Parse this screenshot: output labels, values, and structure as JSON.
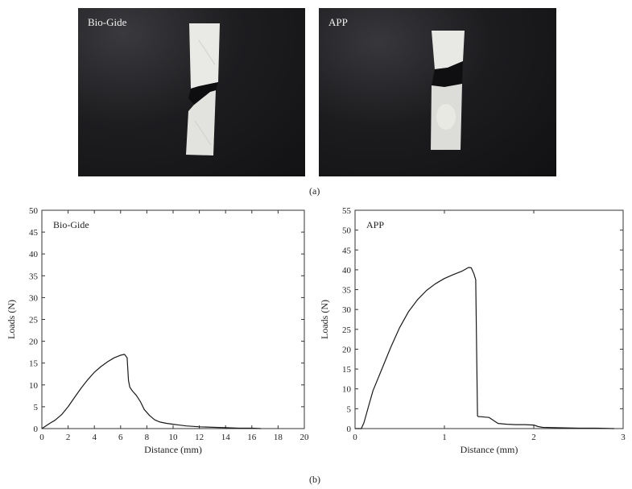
{
  "panels": {
    "a_label": "(a)",
    "b_label": "(b)"
  },
  "photos": [
    {
      "label": "Bio-Gide"
    },
    {
      "label": "APP"
    }
  ],
  "chart_data": [
    {
      "type": "line",
      "series_label": "Bio-Gide",
      "xlabel": "Distance (mm)",
      "ylabel": "Loads (N)",
      "xlim": [
        0,
        20
      ],
      "ylim": [
        0,
        50
      ],
      "xticks": [
        0,
        2,
        4,
        6,
        8,
        10,
        12,
        14,
        16,
        18,
        20
      ],
      "yticks": [
        0,
        5,
        10,
        15,
        20,
        25,
        30,
        35,
        40,
        45,
        50
      ],
      "grid": false,
      "x": [
        0,
        0.3,
        0.6,
        1.0,
        1.5,
        2.0,
        2.5,
        3.0,
        3.5,
        4.0,
        4.5,
        5.0,
        5.5,
        6.0,
        6.3,
        6.5,
        6.6,
        6.7,
        6.9,
        7.2,
        7.5,
        7.8,
        8.2,
        8.6,
        9.0,
        9.5,
        10.0,
        10.5,
        11.0,
        12.0,
        13.0,
        14.0,
        15.0,
        16.0,
        16.7
      ],
      "y": [
        0,
        0.6,
        1.2,
        1.9,
        3.2,
        5.0,
        7.2,
        9.3,
        11.2,
        12.9,
        14.2,
        15.3,
        16.2,
        16.8,
        17.0,
        16.2,
        11.0,
        9.5,
        8.6,
        7.6,
        6.2,
        4.4,
        3.0,
        2.0,
        1.5,
        1.2,
        1.0,
        0.8,
        0.6,
        0.4,
        0.3,
        0.2,
        0.1,
        0.1,
        0.0
      ]
    },
    {
      "type": "line",
      "series_label": "APP",
      "xlabel": "Distance (mm)",
      "ylabel": "Loads (N)",
      "xlim": [
        0,
        3
      ],
      "ylim": [
        0,
        55
      ],
      "xticks": [
        0,
        1,
        2,
        3
      ],
      "yticks": [
        0,
        5,
        10,
        15,
        20,
        25,
        30,
        35,
        40,
        45,
        50,
        55
      ],
      "grid": false,
      "x": [
        0,
        0.07,
        0.1,
        0.15,
        0.2,
        0.3,
        0.4,
        0.5,
        0.6,
        0.7,
        0.8,
        0.9,
        1.0,
        1.1,
        1.2,
        1.27,
        1.3,
        1.33,
        1.35,
        1.36,
        1.37,
        1.38,
        1.4,
        1.5,
        1.6,
        1.7,
        1.8,
        1.9,
        2.0,
        2.05,
        2.1,
        2.3,
        2.5,
        2.7,
        2.9
      ],
      "y": [
        0,
        0,
        1.5,
        5.5,
        9.5,
        15.0,
        20.5,
        25.5,
        29.5,
        32.5,
        34.8,
        36.5,
        37.8,
        38.8,
        39.7,
        40.6,
        40.5,
        39.0,
        37.5,
        20.0,
        3.2,
        3.0,
        3.0,
        2.8,
        1.3,
        1.1,
        1.0,
        1.0,
        0.9,
        0.5,
        0.3,
        0.2,
        0.1,
        0.1,
        0.0
      ]
    }
  ]
}
